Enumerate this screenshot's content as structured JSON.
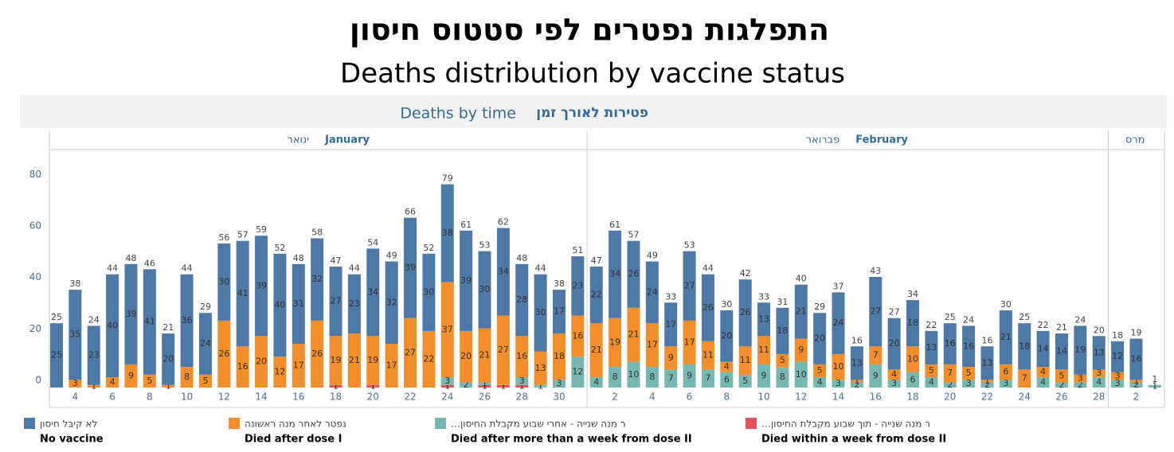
{
  "chart_data": {
    "type": "stacked_bar",
    "title": "התפלגות נפטרים לפי סטטוס חיסון",
    "subtitle": "Deaths distribution by vaccine status",
    "panel_title_en": "Deaths by time",
    "panel_title_he": "פטירות לאורך זמן",
    "months": [
      {
        "he": "ינואר",
        "en": "January"
      },
      {
        "he": "פברואר",
        "en": "February"
      },
      {
        "he": "מרס"
      }
    ],
    "categories": [
      null,
      "4",
      null,
      "6",
      null,
      "8",
      null,
      "10",
      null,
      "12",
      null,
      "14",
      null,
      "16",
      null,
      "18",
      null,
      "20",
      null,
      "22",
      null,
      "24",
      null,
      "26",
      null,
      "28",
      null,
      "30",
      null,
      null,
      "2",
      null,
      "4",
      null,
      "6",
      null,
      "8",
      null,
      "10",
      null,
      "12",
      null,
      "14",
      null,
      "16",
      null,
      "18",
      null,
      "20",
      null,
      "22",
      null,
      "24",
      null,
      "26",
      null,
      "28",
      null,
      "2",
      null
    ],
    "totals": [
      25,
      38,
      24,
      44,
      48,
      46,
      21,
      44,
      29,
      56,
      57,
      59,
      52,
      48,
      58,
      47,
      44,
      54,
      49,
      66,
      52,
      79,
      61,
      53,
      62,
      48,
      44,
      38,
      51,
      47,
      61,
      57,
      49,
      33,
      53,
      44,
      30,
      42,
      33,
      31,
      40,
      29,
      37,
      16,
      43,
      27,
      34,
      22,
      25,
      24,
      16,
      30,
      25,
      22,
      21,
      24,
      20,
      18,
      19,
      1
    ],
    "series": [
      {
        "name": "No vaccine",
        "name_he": "לא קיבל חיסון",
        "color": "#4e79a7",
        "values": [
          25,
          35,
          23,
          40,
          39,
          41,
          20,
          36,
          24,
          30,
          41,
          39,
          40,
          31,
          32,
          27,
          23,
          34,
          32,
          39,
          30,
          38,
          39,
          30,
          34,
          28,
          30,
          17,
          23,
          22,
          34,
          26,
          24,
          17,
          27,
          26,
          20,
          26,
          13,
          18,
          21,
          20,
          24,
          13,
          27,
          20,
          18,
          13,
          16,
          16,
          13,
          21,
          18,
          14,
          14,
          19,
          13,
          12,
          16,
          0
        ]
      },
      {
        "name": "Died after dose I",
        "name_he": "נפטר לאחר מנה ראשונה",
        "color": "#f28e2b",
        "values": [
          0,
          3,
          1,
          4,
          9,
          5,
          1,
          8,
          5,
          26,
          16,
          20,
          12,
          17,
          26,
          19,
          21,
          19,
          17,
          27,
          22,
          37,
          20,
          21,
          27,
          16,
          13,
          18,
          16,
          21,
          19,
          21,
          17,
          9,
          17,
          11,
          4,
          11,
          11,
          5,
          9,
          5,
          10,
          1,
          7,
          4,
          10,
          5,
          7,
          5,
          1,
          6,
          7,
          4,
          5,
          3,
          3,
          3,
          1,
          0
        ]
      },
      {
        "name": "Died after more than a week from dose II",
        "name_he": "ר מנה שנייה - אחרי שבוע מקבלת החיסון…",
        "color": "#76b7b2",
        "values": [
          0,
          0,
          0,
          0,
          0,
          0,
          0,
          0,
          0,
          0,
          0,
          0,
          0,
          0,
          0,
          0,
          0,
          0,
          0,
          0,
          0,
          3,
          2,
          1,
          0,
          3,
          1,
          3,
          12,
          4,
          8,
          10,
          8,
          7,
          9,
          7,
          6,
          5,
          9,
          8,
          10,
          4,
          3,
          2,
          9,
          3,
          6,
          4,
          2,
          3,
          2,
          3,
          0,
          4,
          2,
          2,
          4,
          3,
          2,
          1
        ]
      },
      {
        "name": "Died within a week from dose II",
        "name_he": "ר מנה שנייה - תוך שבוע מקבלת החיסון…",
        "color": "#e15759",
        "values": [
          0,
          0,
          0,
          0,
          0,
          0,
          0,
          0,
          0,
          0,
          0,
          0,
          0,
          0,
          0,
          1,
          0,
          1,
          0,
          0,
          0,
          1,
          0,
          1,
          1,
          1,
          0,
          0,
          0,
          0,
          0,
          0,
          0,
          0,
          0,
          0,
          0,
          0,
          0,
          0,
          0,
          0,
          0,
          0,
          0,
          0,
          0,
          0,
          0,
          0,
          0,
          0,
          0,
          0,
          0,
          0,
          0,
          0,
          0,
          0
        ]
      }
    ],
    "ylim": [
      0,
      90
    ],
    "yticks": [
      0,
      20,
      40,
      60,
      80
    ],
    "grid": false
  }
}
